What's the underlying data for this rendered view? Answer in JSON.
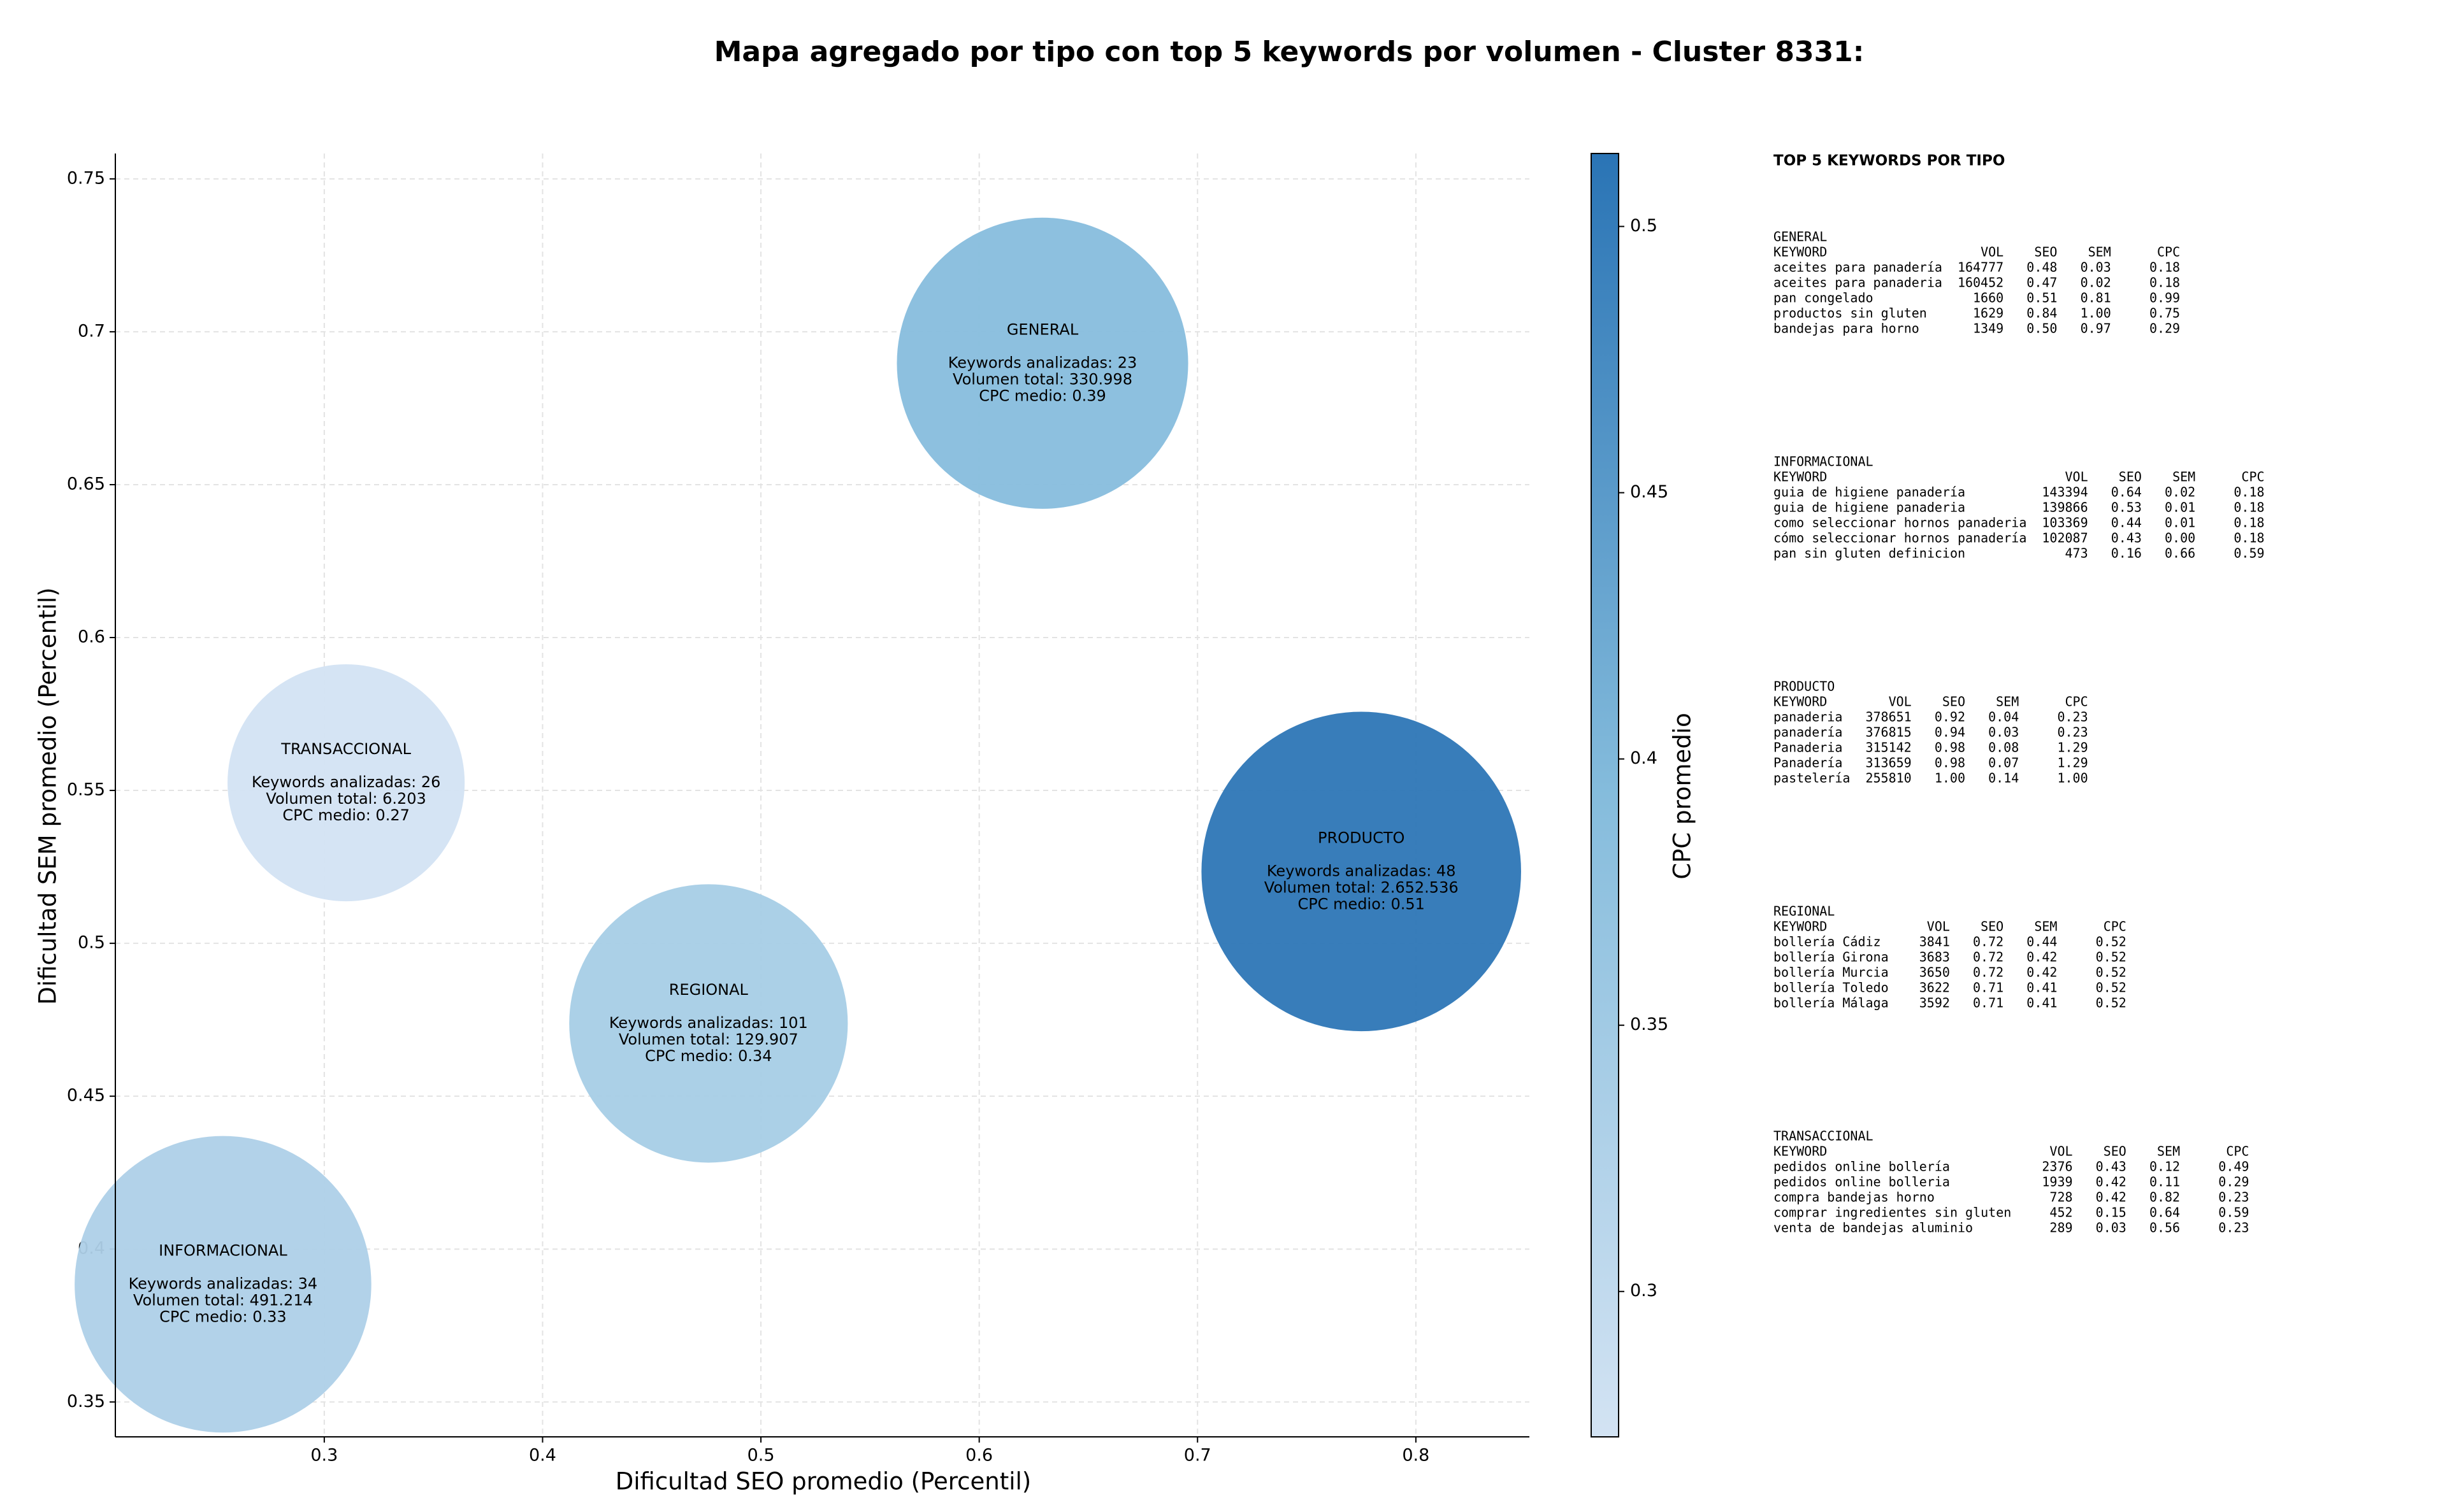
{
  "chart_data": {
    "type": "bubble",
    "title": "Mapa agregado por tipo con top 5 keywords por volumen - Cluster 8331:",
    "x_label": "Dificultad SEO promedio (Percentil)",
    "y_label": "Dificultad SEM promedio (Percentil)",
    "colorbar_label": "CPC promedio",
    "categories": [
      "GENERAL",
      "INFORMACIONAL",
      "PRODUCTO",
      "REGIONAL",
      "TRANSACCIONAL"
    ],
    "x": [
      0.629,
      0.2536,
      0.775,
      0.476,
      0.31
    ],
    "values": [
      0.6897,
      0.3885,
      0.5235,
      0.4738,
      0.5525
    ],
    "sizes": [
      330998,
      491214,
      2652536,
      129907,
      6203
    ],
    "cpc": [
      0.39,
      0.33,
      0.51,
      0.34,
      0.27
    ],
    "annotations": [
      [
        "Keywords analizadas: 23",
        "Volumen total: 330.998",
        "CPC medio: 0.39"
      ],
      [
        "Keywords analizadas: 34",
        "Volumen total: 491.214",
        "CPC medio: 0.33"
      ],
      [
        "Keywords analizadas: 48",
        "Volumen total: 2.652.536",
        "CPC medio: 0.51"
      ],
      [
        "Keywords analizadas: 101",
        "Volumen total: 129.907",
        "CPC medio: 0.34"
      ],
      [
        "Keywords analizadas: 26",
        "Volumen total: 6.203",
        "CPC medio: 0.27"
      ]
    ],
    "xlim": [
      0.2043,
      0.852
    ],
    "xticks": [
      0.3,
      0.4,
      0.5,
      0.6,
      0.7,
      0.8
    ],
    "ylim": [
      0.3386,
      0.7583
    ],
    "yticks": [
      0.35,
      0.4,
      0.45,
      0.5,
      0.55,
      0.6,
      0.65,
      0.7,
      0.75
    ],
    "clim": [
      0.2727,
      0.5137
    ],
    "cticks": [
      0.3,
      0.35,
      0.4,
      0.45,
      0.5
    ],
    "colormap": [
      "#d3e3f3",
      "#85bcdc",
      "#2a74b5"
    ],
    "grid": true
  },
  "top_keywords": {
    "title": "TOP 5 KEYWORDS POR TIPO",
    "columns": [
      "KEYWORD",
      "VOL",
      "SEO",
      "SEM",
      "CPC"
    ],
    "groups": [
      {
        "name": "GENERAL",
        "rows": [
          [
            "aceites para panadería",
            "164777",
            "0.48",
            "0.03",
            "0.18"
          ],
          [
            "aceites para panaderia",
            "160452",
            "0.47",
            "0.02",
            "0.18"
          ],
          [
            "pan congelado",
            "1660",
            "0.51",
            "0.81",
            "0.99"
          ],
          [
            "productos sin gluten",
            "1629",
            "0.84",
            "1.00",
            "0.75"
          ],
          [
            "bandejas para horno",
            "1349",
            "0.50",
            "0.97",
            "0.29"
          ]
        ]
      },
      {
        "name": "INFORMACIONAL",
        "rows": [
          [
            "guia de higiene panadería",
            "143394",
            "0.64",
            "0.02",
            "0.18"
          ],
          [
            "guia de higiene panaderia",
            "139866",
            "0.53",
            "0.01",
            "0.18"
          ],
          [
            "como seleccionar hornos panaderia",
            "103369",
            "0.44",
            "0.01",
            "0.18"
          ],
          [
            "cómo seleccionar hornos panadería",
            "102087",
            "0.43",
            "0.00",
            "0.18"
          ],
          [
            "pan sin gluten definicion",
            "473",
            "0.16",
            "0.66",
            "0.59"
          ]
        ]
      },
      {
        "name": "PRODUCTO",
        "rows": [
          [
            "panaderia",
            "378651",
            "0.92",
            "0.04",
            "0.23"
          ],
          [
            "panadería",
            "376815",
            "0.94",
            "0.03",
            "0.23"
          ],
          [
            "Panaderia",
            "315142",
            "0.98",
            "0.08",
            "1.29"
          ],
          [
            "Panadería",
            "313659",
            "0.98",
            "0.07",
            "1.29"
          ],
          [
            "pastelería",
            "255810",
            "1.00",
            "0.14",
            "1.00"
          ]
        ]
      },
      {
        "name": "REGIONAL",
        "rows": [
          [
            "bollería Cádiz",
            "3841",
            "0.72",
            "0.44",
            "0.52"
          ],
          [
            "bollería Girona",
            "3683",
            "0.72",
            "0.42",
            "0.52"
          ],
          [
            "bollería Murcia",
            "3650",
            "0.72",
            "0.42",
            "0.52"
          ],
          [
            "bollería Toledo",
            "3622",
            "0.71",
            "0.41",
            "0.52"
          ],
          [
            "bollería Málaga",
            "3592",
            "0.71",
            "0.41",
            "0.52"
          ]
        ]
      },
      {
        "name": "TRANSACCIONAL",
        "rows": [
          [
            "pedidos online bollería",
            "2376",
            "0.43",
            "0.12",
            "0.49"
          ],
          [
            "pedidos online bolleria",
            "1939",
            "0.42",
            "0.11",
            "0.29"
          ],
          [
            "compra bandejas horno",
            "728",
            "0.42",
            "0.82",
            "0.23"
          ],
          [
            "comprar ingredientes sin gluten",
            "452",
            "0.15",
            "0.64",
            "0.59"
          ],
          [
            "venta de bandejas aluminio",
            "289",
            "0.03",
            "0.56",
            "0.23"
          ]
        ]
      }
    ]
  }
}
